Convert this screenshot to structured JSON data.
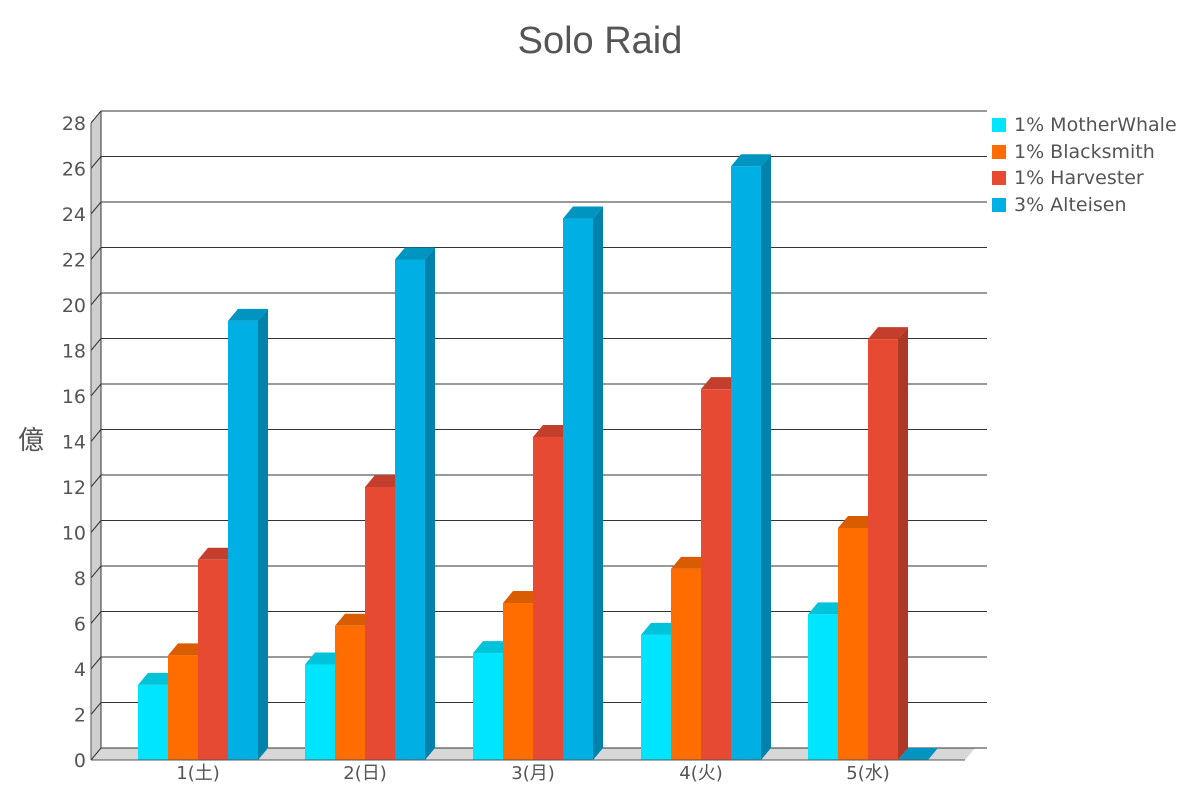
{
  "chart_data": {
    "type": "bar",
    "title": "Solo Raid",
    "xlabel": "",
    "ylabel": "億",
    "ylim": [
      0,
      28
    ],
    "yticks": [
      0,
      2,
      4,
      6,
      8,
      10,
      12,
      14,
      16,
      18,
      20,
      22,
      24,
      26,
      28
    ],
    "grid": true,
    "legend_position": "right",
    "categories": [
      "1(土)",
      "2(日)",
      "3(月)",
      "4(火)",
      "5(水)"
    ],
    "series": [
      {
        "name": "1% MotherWhale",
        "color": "#00e5ff",
        "values": [
          3.3,
          4.2,
          4.7,
          5.5,
          6.4
        ]
      },
      {
        "name": "1% Blacksmith",
        "color": "#ff6d00",
        "values": [
          4.6,
          5.9,
          6.9,
          8.4,
          10.2
        ]
      },
      {
        "name": "1% Harvester",
        "color": "#e64a33",
        "values": [
          8.8,
          12.0,
          14.2,
          16.3,
          18.5
        ]
      },
      {
        "name": "3% Alteisen",
        "color": "#00afe3",
        "values": [
          19.3,
          22.0,
          23.8,
          26.1,
          0
        ]
      }
    ]
  }
}
